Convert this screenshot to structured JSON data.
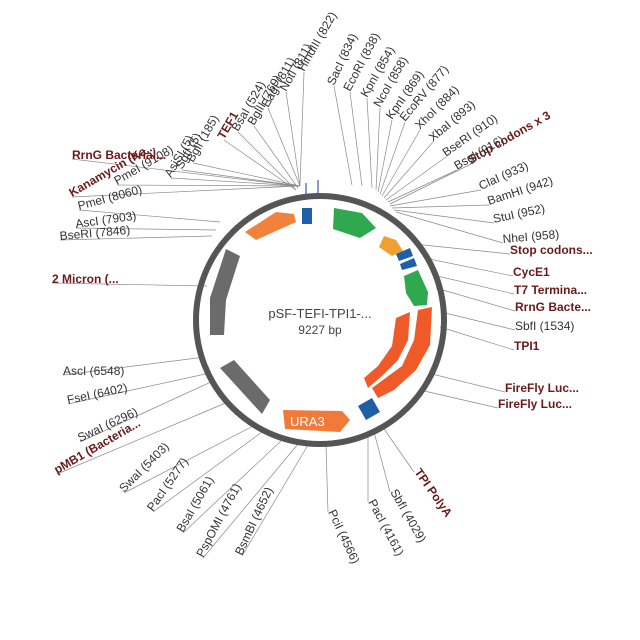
{
  "plasmid": {
    "name": "pSF-TEFI-TPI1-...",
    "size_label": "9227 bp",
    "total_bp": 9227
  },
  "colors": {
    "backbone": "#555555",
    "orange": "#f0823c",
    "red_orange": "#f05a28",
    "green": "#2fa84f",
    "blue": "#1f5fa8",
    "gray": "#6b6b6b",
    "ura3": "#f07a3a",
    "label_bold": "#6b1a1a",
    "label": "#333333",
    "leader": "#8a8a8a"
  },
  "labels": [
    {
      "id": "l-hindiii",
      "text": "HindIII (822)",
      "bold": false
    },
    {
      "id": "l-noti",
      "text": "NotI (811)",
      "bold": false
    },
    {
      "id": "l-eagi",
      "text": "EagI (811)",
      "bold": false
    },
    {
      "id": "l-bglii-769",
      "text": "BglII (769)",
      "bold": false
    },
    {
      "id": "l-bsai-524",
      "text": "BsaI (524)",
      "bold": false
    },
    {
      "id": "l-tef1",
      "text": "TEF1",
      "bold": true
    },
    {
      "id": "l-bgli",
      "text": "BglI (185)",
      "bold": false
    },
    {
      "id": "l-sgfi",
      "text": "SgfI (5)",
      "bold": false
    },
    {
      "id": "l-asisi",
      "text": "AsiSI (5)",
      "bold": false
    },
    {
      "id": "l-pmei-9108",
      "text": "PmeI (9108)",
      "bold": false
    },
    {
      "id": "l-rrng1",
      "text": "RrnG Bacterial...",
      "bold": true
    },
    {
      "id": "l-kan",
      "text": "Kanamycin (Ka...",
      "bold": true
    },
    {
      "id": "l-pmei-8060",
      "text": "PmeI (8060)",
      "bold": false
    },
    {
      "id": "l-asci-7903",
      "text": "AscI (7903)",
      "bold": false
    },
    {
      "id": "l-bseri-7846",
      "text": "BseRI (7846)",
      "bold": false
    },
    {
      "id": "l-2micron",
      "text": "2 Micron (...",
      "bold": true
    },
    {
      "id": "l-asci-6548",
      "text": "AscI (6548)",
      "bold": false
    },
    {
      "id": "l-fsei",
      "text": "FseI (6402)",
      "bold": false
    },
    {
      "id": "l-swai-6296",
      "text": "SwaI (6296)",
      "bold": false
    },
    {
      "id": "l-pmb1",
      "text": "pMB1 (Bacteria...",
      "bold": true
    },
    {
      "id": "l-swai-5403",
      "text": "SwaI (5403)",
      "bold": false
    },
    {
      "id": "l-paci-5277",
      "text": "PacI (5277)",
      "bold": false
    },
    {
      "id": "l-bsai-5061",
      "text": "BsaI (5061)",
      "bold": false
    },
    {
      "id": "l-pspomi",
      "text": "PspOMI (4761)",
      "bold": false
    },
    {
      "id": "l-bsmbi",
      "text": "BsmBI (4652)",
      "bold": false
    },
    {
      "id": "l-pcii",
      "text": "PciI (4566)",
      "bold": false
    },
    {
      "id": "l-paci-4161",
      "text": "PacI (4161)",
      "bold": false
    },
    {
      "id": "l-sbfi-4029",
      "text": "SbfI (4029)",
      "bold": false
    },
    {
      "id": "l-tpipolya",
      "text": "TPI PolyA",
      "bold": true
    },
    {
      "id": "l-ffluc2",
      "text": "FireFly Luc...",
      "bold": true
    },
    {
      "id": "l-ffluc1",
      "text": "FireFly Luc...",
      "bold": true
    },
    {
      "id": "l-tpi1",
      "text": "TPI1",
      "bold": true
    },
    {
      "id": "l-sbfi-1534",
      "text": "SbfI (1534)",
      "bold": false
    },
    {
      "id": "l-rrng2",
      "text": "RrnG Bacte...",
      "bold": true
    },
    {
      "id": "l-t7term",
      "text": "T7 Termina...",
      "bold": true
    },
    {
      "id": "l-cyce1",
      "text": "CycE1",
      "bold": true
    },
    {
      "id": "l-stop2",
      "text": "Stop codons...",
      "bold": true
    },
    {
      "id": "l-nhei",
      "text": "NheI (958)",
      "bold": false
    },
    {
      "id": "l-stui",
      "text": "StuI (952)",
      "bold": false
    },
    {
      "id": "l-bamhi",
      "text": "BamHI (942)",
      "bold": false
    },
    {
      "id": "l-clai",
      "text": "ClaI (933)",
      "bold": false
    },
    {
      "id": "l-stop1",
      "text": "Stop codons x 3",
      "bold": true
    },
    {
      "id": "l-bsgi",
      "text": "BsgI (916)",
      "bold": false
    },
    {
      "id": "l-bseri-910",
      "text": "BseRI (910)",
      "bold": false
    },
    {
      "id": "l-xbai",
      "text": "XbaI (893)",
      "bold": false
    },
    {
      "id": "l-xhoi",
      "text": "XhoI (884)",
      "bold": false
    },
    {
      "id": "l-ecorv",
      "text": "EcoRV (877)",
      "bold": false
    },
    {
      "id": "l-kpni-869",
      "text": "KpnI (869)",
      "bold": false
    },
    {
      "id": "l-ncoi",
      "text": "NcoI (858)",
      "bold": false
    },
    {
      "id": "l-kpni-854",
      "text": "KpnI (854)",
      "bold": false
    },
    {
      "id": "l-ecori",
      "text": "EcoRI (838)",
      "bold": false
    },
    {
      "id": "l-saci",
      "text": "SacI (834)",
      "bold": false
    }
  ],
  "features": [
    {
      "id": "f-ura3",
      "text": "URA3"
    }
  ]
}
